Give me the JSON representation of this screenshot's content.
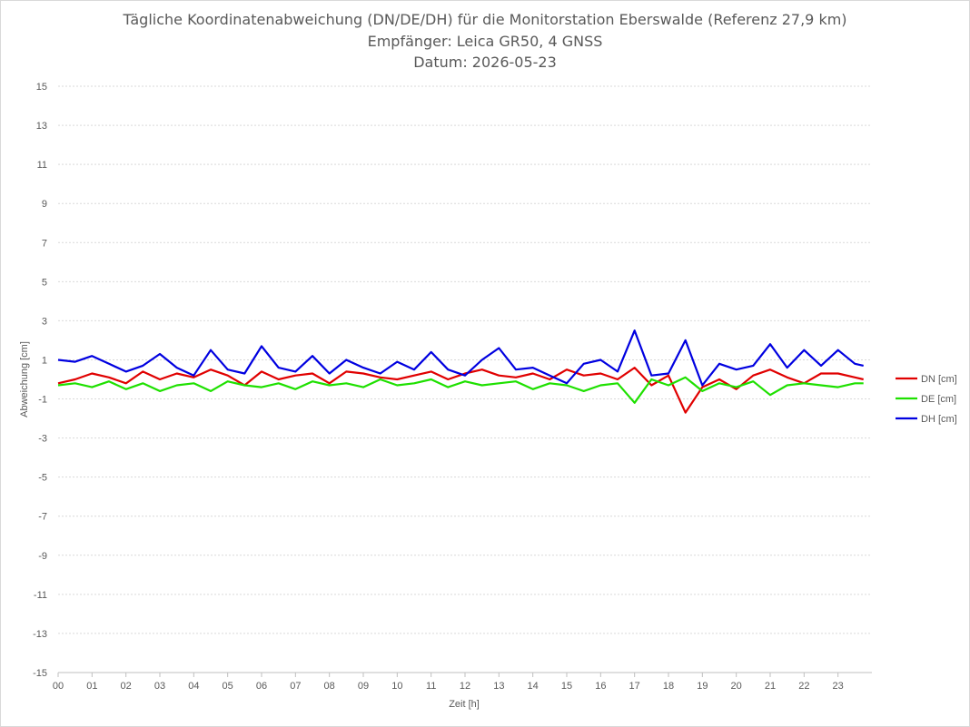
{
  "chart_data": {
    "type": "line",
    "title": "Tägliche Koordinatenabweichung (DN/DE/DH) für die Monitorstation Eberswalde (Referenz 27,9 km)",
    "subtitle": "Empfänger: Leica GR50, 4 GNSS",
    "date_label": "Datum: 2026-05-23",
    "xlabel": "Zeit [h]",
    "ylabel": "Abweichung [cm]",
    "xlim": [
      0,
      24
    ],
    "ylim": [
      -15,
      15
    ],
    "x_ticks": [
      "00",
      "01",
      "02",
      "03",
      "04",
      "05",
      "06",
      "07",
      "08",
      "09",
      "10",
      "11",
      "12",
      "13",
      "14",
      "15",
      "16",
      "17",
      "18",
      "19",
      "20",
      "21",
      "22",
      "23"
    ],
    "y_ticks": [
      15,
      13,
      11,
      9,
      7,
      5,
      3,
      1,
      -1,
      -3,
      -5,
      -7,
      -9,
      -11,
      -13,
      -15
    ],
    "grid": "horizontal-dotted",
    "legend_position": "right",
    "x": [
      0,
      0.5,
      1,
      1.5,
      2,
      2.5,
      3,
      3.5,
      4,
      4.5,
      5,
      5.5,
      6,
      6.5,
      7,
      7.5,
      8,
      8.5,
      9,
      9.5,
      10,
      10.5,
      11,
      11.5,
      12,
      12.5,
      13,
      13.5,
      14,
      14.5,
      15,
      15.5,
      16,
      16.5,
      17,
      17.5,
      18,
      18.5,
      19,
      19.5,
      20,
      20.5,
      21,
      21.5,
      22,
      22.5,
      23,
      23.5,
      23.75
    ],
    "series": [
      {
        "name": "DN [cm]",
        "color": "#e00000",
        "values": [
          -0.2,
          0.0,
          0.3,
          0.1,
          -0.2,
          0.4,
          0.0,
          0.3,
          0.1,
          0.5,
          0.2,
          -0.3,
          0.4,
          0.0,
          0.2,
          0.3,
          -0.2,
          0.4,
          0.3,
          0.1,
          0.0,
          0.2,
          0.4,
          0.0,
          0.3,
          0.5,
          0.2,
          0.1,
          0.3,
          0.0,
          0.5,
          0.2,
          0.3,
          0.0,
          0.6,
          -0.3,
          0.2,
          -1.7,
          -0.4,
          0.0,
          -0.5,
          0.2,
          0.5,
          0.1,
          -0.2,
          0.3,
          0.3,
          0.1,
          0.0
        ]
      },
      {
        "name": "DE [cm]",
        "color": "#1ee000",
        "values": [
          -0.3,
          -0.2,
          -0.4,
          -0.1,
          -0.5,
          -0.2,
          -0.6,
          -0.3,
          -0.2,
          -0.6,
          -0.1,
          -0.3,
          -0.4,
          -0.2,
          -0.5,
          -0.1,
          -0.3,
          -0.2,
          -0.4,
          0.0,
          -0.3,
          -0.2,
          0.0,
          -0.4,
          -0.1,
          -0.3,
          -0.2,
          -0.1,
          -0.5,
          -0.2,
          -0.3,
          -0.6,
          -0.3,
          -0.2,
          -1.2,
          0.0,
          -0.3,
          0.1,
          -0.6,
          -0.2,
          -0.4,
          -0.1,
          -0.8,
          -0.3,
          -0.2,
          -0.3,
          -0.4,
          -0.2,
          -0.2
        ]
      },
      {
        "name": "DH [cm]",
        "color": "#0000e0",
        "values": [
          1.0,
          0.9,
          1.2,
          0.8,
          0.4,
          0.7,
          1.3,
          0.6,
          0.2,
          1.5,
          0.5,
          0.3,
          1.7,
          0.6,
          0.4,
          1.2,
          0.3,
          1.0,
          0.6,
          0.3,
          0.9,
          0.5,
          1.4,
          0.5,
          0.2,
          1.0,
          1.6,
          0.5,
          0.6,
          0.2,
          -0.2,
          0.8,
          1.0,
          0.4,
          2.5,
          0.2,
          0.3,
          2.0,
          -0.3,
          0.8,
          0.5,
          0.7,
          1.8,
          0.6,
          1.5,
          0.7,
          1.5,
          0.8,
          0.7
        ]
      }
    ]
  }
}
